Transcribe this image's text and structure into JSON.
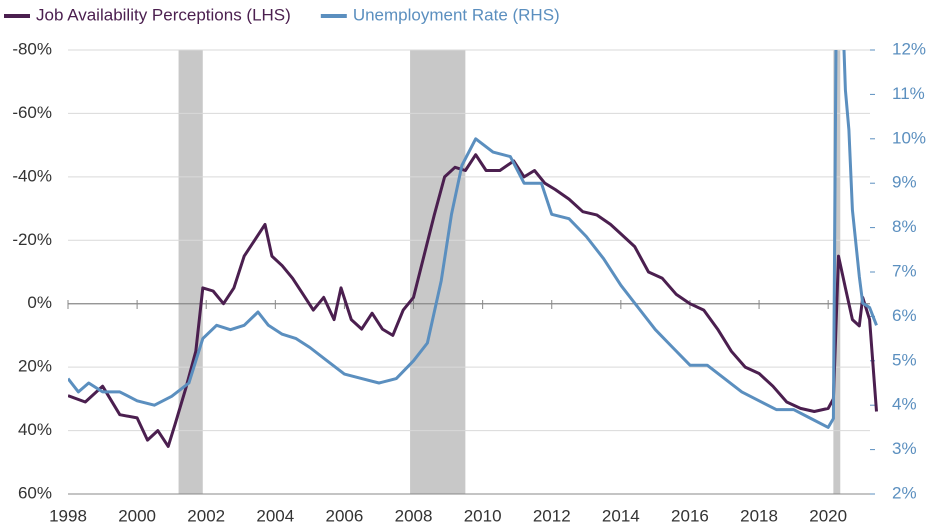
{
  "chart_data": {
    "type": "line",
    "legend_position": "top-left",
    "grid": true,
    "xlim": [
      1998,
      2021.5
    ],
    "xticks": [
      1998,
      2000,
      2002,
      2004,
      2006,
      2008,
      2010,
      2012,
      2014,
      2016,
      2018,
      2020
    ],
    "ylim": [
      60,
      -80
    ],
    "yticks": [
      {
        "value": -80,
        "label": "-80%"
      },
      {
        "value": -60,
        "label": "-60%"
      },
      {
        "value": -40,
        "label": "-40%"
      },
      {
        "value": -20,
        "label": "-20%"
      },
      {
        "value": 0,
        "label": "0%"
      },
      {
        "value": 20,
        "label": "20%"
      },
      {
        "value": 40,
        "label": "40%"
      },
      {
        "value": 60,
        "label": "60%"
      }
    ],
    "y2lim": [
      2,
      12
    ],
    "y2ticks": [
      {
        "value": 2,
        "label": "2%"
      },
      {
        "value": 3,
        "label": "3%"
      },
      {
        "value": 4,
        "label": "4%"
      },
      {
        "value": 5,
        "label": "5%"
      },
      {
        "value": 6,
        "label": "6%"
      },
      {
        "value": 7,
        "label": "7%"
      },
      {
        "value": 8,
        "label": "8%"
      },
      {
        "value": 9,
        "label": "9%"
      },
      {
        "value": 10,
        "label": "10%"
      },
      {
        "value": 11,
        "label": "11%"
      },
      {
        "value": 12,
        "label": "12%"
      }
    ],
    "shaded_periods": [
      [
        2001.2,
        2001.9
      ],
      [
        2007.9,
        2009.5
      ],
      [
        2020.15,
        2020.35
      ]
    ],
    "shade_color": "#c8c8c8",
    "series": [
      {
        "name": "Job Availability Perceptions (LHS)",
        "color": "#4b1f4f",
        "axis": "y",
        "x": [
          1998.0,
          1998.5,
          1999.0,
          1999.5,
          2000.0,
          2000.3,
          2000.6,
          2000.9,
          2001.1,
          2001.4,
          2001.7,
          2001.9,
          2002.2,
          2002.5,
          2002.8,
          2003.1,
          2003.4,
          2003.7,
          2003.9,
          2004.2,
          2004.5,
          2004.8,
          2005.1,
          2005.4,
          2005.7,
          2005.9,
          2006.2,
          2006.5,
          2006.8,
          2007.1,
          2007.4,
          2007.7,
          2008.0,
          2008.3,
          2008.6,
          2008.9,
          2009.2,
          2009.5,
          2009.8,
          2010.1,
          2010.5,
          2010.9,
          2011.2,
          2011.5,
          2011.8,
          2012.1,
          2012.5,
          2012.9,
          2013.3,
          2013.7,
          2014.0,
          2014.4,
          2014.8,
          2015.2,
          2015.6,
          2016.0,
          2016.4,
          2016.8,
          2017.2,
          2017.6,
          2018.0,
          2018.4,
          2018.8,
          2019.2,
          2019.6,
          2020.0,
          2020.15,
          2020.3,
          2020.5,
          2020.7,
          2020.9,
          2021.0,
          2021.2,
          2021.4
        ],
        "values": [
          29,
          31,
          26,
          35,
          36,
          43,
          40,
          45,
          38,
          27,
          15,
          -5,
          -4,
          0,
          -5,
          -15,
          -20,
          -25,
          -15,
          -12,
          -8,
          -3,
          2,
          -2,
          5,
          -5,
          5,
          8,
          3,
          8,
          10,
          2,
          -2,
          -15,
          -28,
          -40,
          -43,
          -42,
          -47,
          -42,
          -42,
          -45,
          -40,
          -42,
          -38,
          -36,
          -33,
          -29,
          -28,
          -25,
          -22,
          -18,
          -10,
          -8,
          -3,
          0,
          2,
          8,
          15,
          20,
          22,
          26,
          31,
          33,
          34,
          33,
          30,
          -15,
          -5,
          5,
          7,
          -2,
          5,
          34
        ]
      },
      {
        "name": "Unemployment Rate (RHS)",
        "color": "#5b8fbf",
        "axis": "y2",
        "x": [
          1998.0,
          1998.3,
          1998.6,
          1999.0,
          1999.5,
          2000.0,
          2000.5,
          2001.0,
          2001.5,
          2001.9,
          2002.3,
          2002.7,
          2003.1,
          2003.5,
          2003.8,
          2004.2,
          2004.6,
          2005.0,
          2005.5,
          2006.0,
          2006.5,
          2007.0,
          2007.5,
          2008.0,
          2008.4,
          2008.8,
          2009.1,
          2009.4,
          2009.8,
          2010.3,
          2010.8,
          2011.2,
          2011.7,
          2012.0,
          2012.5,
          2013.0,
          2013.5,
          2014.0,
          2014.5,
          2015.0,
          2015.5,
          2016.0,
          2016.5,
          2017.0,
          2017.5,
          2018.0,
          2018.5,
          2019.0,
          2019.5,
          2020.0,
          2020.15,
          2020.25,
          2020.4,
          2020.5,
          2020.6,
          2020.7,
          2020.9,
          2021.0,
          2021.2,
          2021.4
        ],
        "values": [
          4.6,
          4.3,
          4.5,
          4.3,
          4.3,
          4.1,
          4.0,
          4.2,
          4.5,
          5.5,
          5.8,
          5.7,
          5.8,
          6.1,
          5.8,
          5.6,
          5.5,
          5.3,
          5.0,
          4.7,
          4.6,
          4.5,
          4.6,
          5.0,
          5.4,
          6.8,
          8.3,
          9.4,
          10.0,
          9.7,
          9.6,
          9.0,
          9.0,
          8.3,
          8.2,
          7.8,
          7.3,
          6.7,
          6.2,
          5.7,
          5.3,
          4.9,
          4.9,
          4.6,
          4.3,
          4.1,
          3.9,
          3.9,
          3.7,
          3.5,
          3.7,
          14.7,
          13.3,
          11.1,
          10.2,
          8.4,
          6.9,
          6.3,
          6.2,
          5.8
        ]
      }
    ]
  }
}
